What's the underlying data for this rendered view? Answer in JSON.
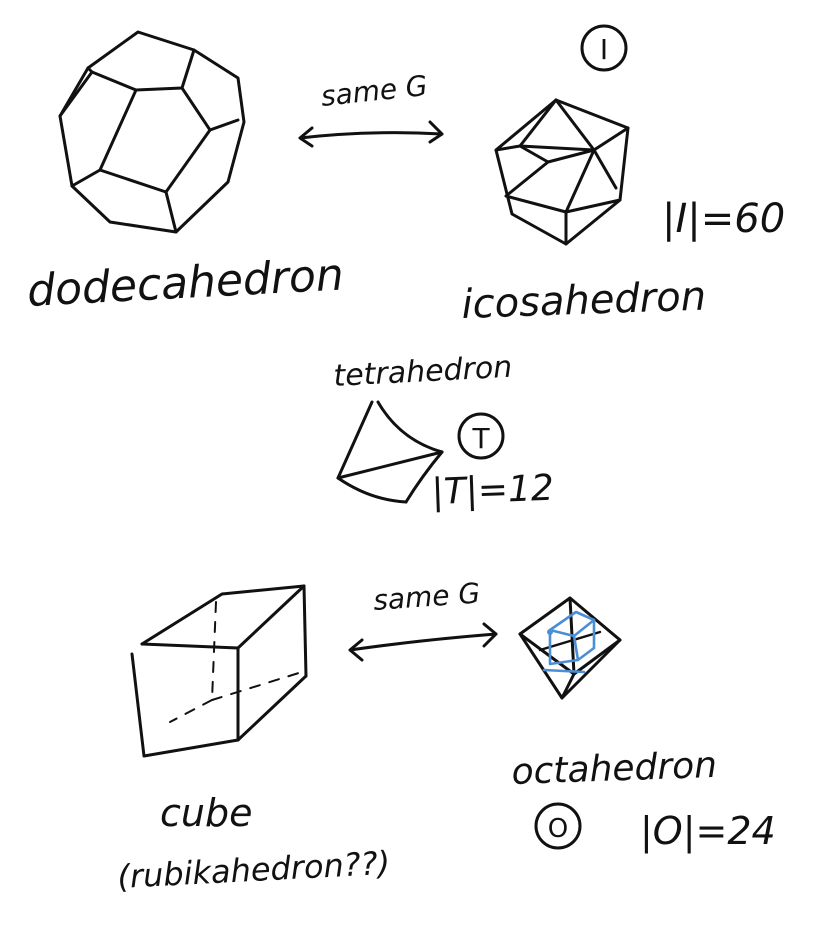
{
  "labels": {
    "dodecahedron": "dodecahedron",
    "icosahedron": "icosahedron",
    "tetrahedron": "tetrahedron",
    "cube": "cube",
    "rubik": "(rubikahedron??)",
    "octahedron": "octahedron"
  },
  "relations": {
    "top": "same G",
    "bottom": "same G"
  },
  "groups": {
    "I": {
      "symbol": "I",
      "order": "|I|=60"
    },
    "T": {
      "symbol": "T",
      "order": "|T|=12"
    },
    "O": {
      "symbol": "O",
      "order": "|O|=24"
    }
  },
  "colors": {
    "ink": "#111111",
    "highlight": "#4a8fd6"
  }
}
